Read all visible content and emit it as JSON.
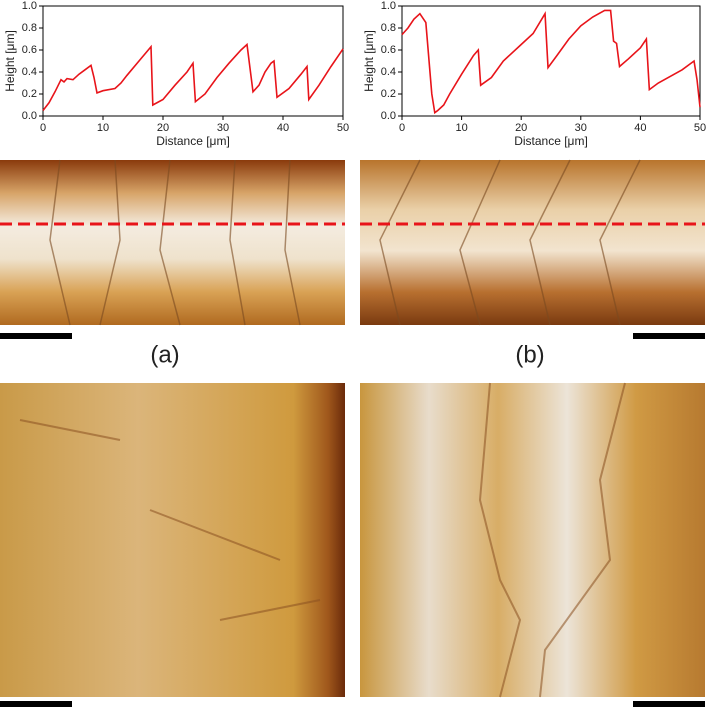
{
  "chart_data": [
    {
      "type": "line",
      "annotation": "(a)",
      "x_label": "Distance [μm]",
      "y_label": "Height [μm]",
      "xlim": [
        0,
        50
      ],
      "xticks": [
        0,
        10,
        20,
        30,
        40,
        50
      ],
      "ylim": [
        0,
        1
      ],
      "yticks": [
        {
          "value": 0,
          "label": "0.0"
        },
        0.2,
        0.4,
        0.6,
        0.8,
        {
          "value": 1,
          "label": "1.0"
        }
      ],
      "series": [
        {
          "color": "#e8141a",
          "x": [
            0,
            1,
            2,
            3,
            3.5,
            4,
            5,
            6,
            7,
            8,
            8.5,
            9,
            10,
            12,
            13,
            14,
            16,
            18,
            18.3,
            20,
            22,
            24,
            25,
            25.4,
            27,
            29,
            31,
            33,
            34,
            35,
            36,
            37,
            38,
            38.5,
            39,
            41,
            43,
            44,
            44.3,
            46,
            48,
            50
          ],
          "values": [
            0.05,
            0.12,
            0.22,
            0.33,
            0.31,
            0.34,
            0.33,
            0.38,
            0.42,
            0.46,
            0.35,
            0.21,
            0.23,
            0.25,
            0.3,
            0.37,
            0.5,
            0.63,
            0.1,
            0.15,
            0.28,
            0.4,
            0.48,
            0.13,
            0.2,
            0.35,
            0.48,
            0.6,
            0.65,
            0.22,
            0.28,
            0.4,
            0.48,
            0.5,
            0.17,
            0.25,
            0.38,
            0.45,
            0.15,
            0.28,
            0.45,
            0.61
          ]
        }
      ]
    },
    {
      "type": "line",
      "annotation": "(b)",
      "x_label": "Distance [μm]",
      "y_label": "Height [μm]",
      "xlim": [
        0,
        50
      ],
      "xticks": [
        0,
        10,
        20,
        30,
        40,
        50
      ],
      "ylim": [
        0,
        1
      ],
      "yticks": [
        {
          "value": 0,
          "label": "0.0"
        },
        0.2,
        0.4,
        0.6,
        0.8,
        {
          "value": 1,
          "label": "1.0"
        }
      ],
      "series": [
        {
          "color": "#e8141a",
          "x": [
            0,
            1,
            2,
            3,
            4,
            5,
            5.5,
            6,
            7,
            8,
            10,
            12,
            12.8,
            13.2,
            15,
            17,
            20,
            22,
            24,
            24.5,
            26,
            28,
            30,
            32,
            34,
            35,
            35.5,
            36,
            36.5,
            38,
            40,
            41,
            41.5,
            43,
            45,
            47,
            49,
            49.5,
            50
          ],
          "values": [
            0.74,
            0.8,
            0.88,
            0.93,
            0.85,
            0.2,
            0.03,
            0.05,
            0.1,
            0.2,
            0.38,
            0.55,
            0.6,
            0.28,
            0.35,
            0.5,
            0.65,
            0.75,
            0.93,
            0.44,
            0.55,
            0.7,
            0.82,
            0.9,
            0.96,
            0.96,
            0.68,
            0.66,
            0.45,
            0.52,
            0.62,
            0.7,
            0.24,
            0.3,
            0.36,
            0.42,
            0.5,
            0.33,
            0.08
          ]
        }
      ]
    }
  ]
}
